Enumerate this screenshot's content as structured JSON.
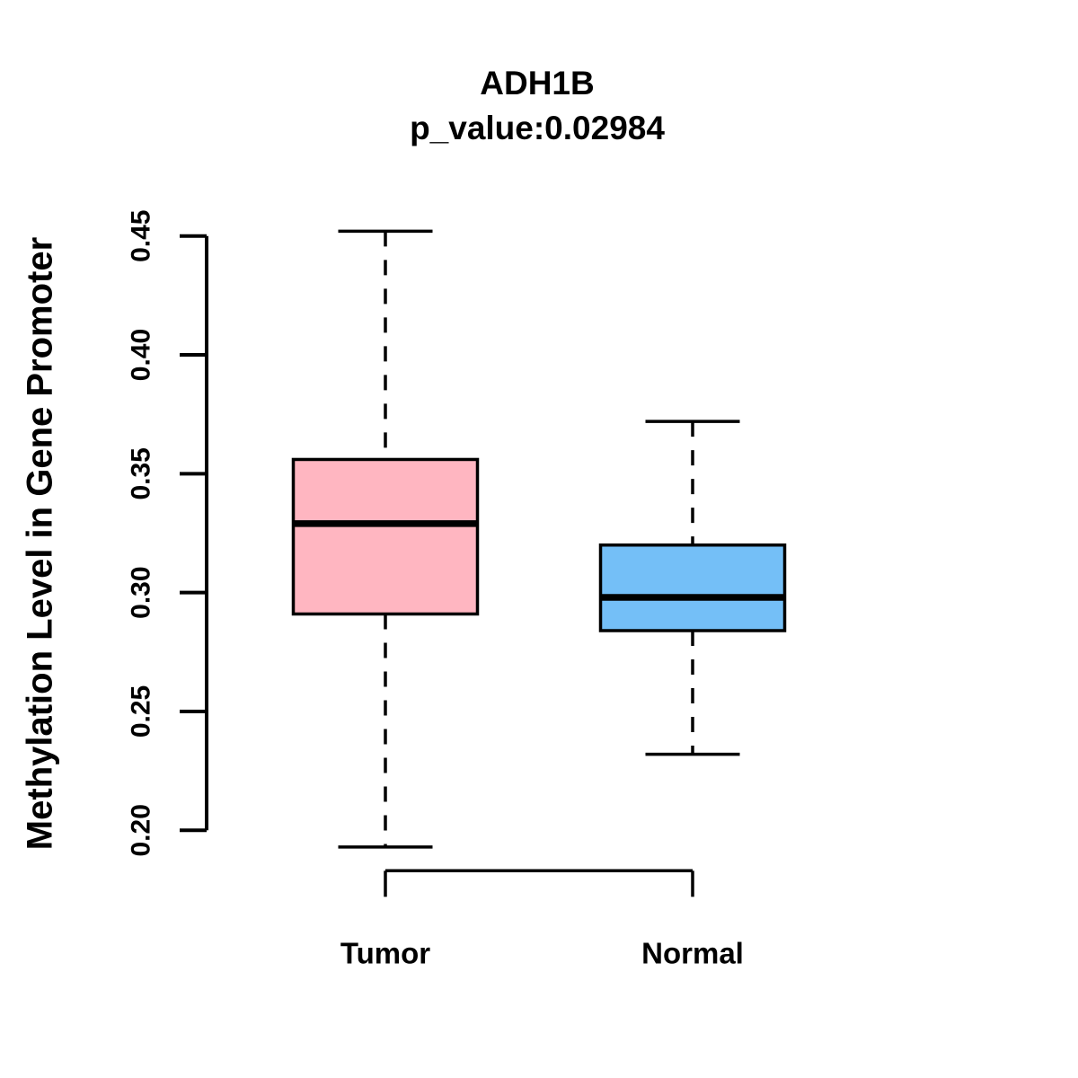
{
  "figure": {
    "title": "ADH1B",
    "subtitle": "p_value:0.02984",
    "y_axis_label": "Methylation Level in Gene Promoter"
  },
  "chart_data": {
    "type": "boxplot",
    "title": "ADH1B",
    "subtitle": "p_value:0.02984",
    "ylabel": "Methylation Level in Gene Promoter",
    "xlabel": "",
    "categories": [
      "Tumor",
      "Normal"
    ],
    "series": [
      {
        "name": "Tumor",
        "box_color": "#FFB6C1",
        "lower_whisker": 0.193,
        "q1": 0.291,
        "median": 0.329,
        "q3": 0.356,
        "upper_whisker": 0.452
      },
      {
        "name": "Normal",
        "box_color": "#74BFF7",
        "lower_whisker": 0.232,
        "q1": 0.284,
        "median": 0.298,
        "q3": 0.32,
        "upper_whisker": 0.372
      }
    ],
    "y_ticks": [
      {
        "value": 0.2,
        "label": "0.20"
      },
      {
        "value": 0.25,
        "label": "0.25"
      },
      {
        "value": 0.3,
        "label": "0.30"
      },
      {
        "value": 0.35,
        "label": "0.35"
      },
      {
        "value": 0.4,
        "label": "0.40"
      },
      {
        "value": 0.45,
        "label": "0.45"
      }
    ],
    "ylim": [
      0.19,
      0.455
    ],
    "grid": false,
    "legend": "none",
    "whisker_style": "dashed",
    "stroke_color": "#000000",
    "median_color": "#000000",
    "background_color": "#FFFFFF"
  }
}
